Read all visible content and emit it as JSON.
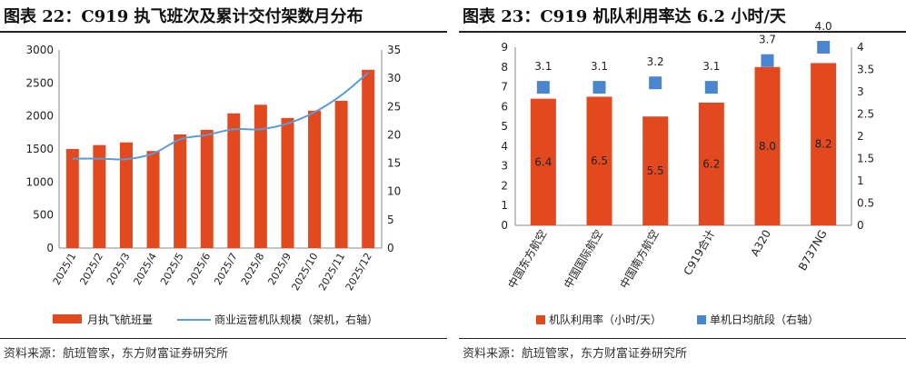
{
  "chart_data": [
    {
      "type": "bar",
      "title": "图表 22：C919 执飞班次及累计交付架数月分布",
      "source": "资料来源：航班管家，东方财富证券研究所",
      "categories": [
        "2025/1",
        "2025/2",
        "2025/3",
        "2025/4",
        "2025/5",
        "2025/6",
        "2025/7",
        "2025/8",
        "2025/9",
        "2025/10",
        "2025/11",
        "2025/12"
      ],
      "series": [
        {
          "name": "月执飞航班量",
          "type": "bar",
          "axis": "left",
          "color": "#E2491F",
          "values": [
            1500,
            1560,
            1600,
            1470,
            1720,
            1790,
            2040,
            2170,
            1970,
            2080,
            2230,
            2700
          ]
        },
        {
          "name": "商业运营机队规模（架机，右轴）",
          "type": "line",
          "axis": "right",
          "color": "#5B9BD5",
          "values": [
            15.8,
            15.8,
            15.7,
            16.7,
            19.2,
            20,
            21,
            21,
            22,
            24,
            27,
            31
          ]
        }
      ],
      "ylim": [
        0,
        3000
      ],
      "yticks": [
        0,
        500,
        1000,
        1500,
        2000,
        2500,
        3000
      ],
      "y2lim": [
        0,
        35
      ],
      "y2ticks": [
        0,
        5,
        10,
        15,
        20,
        25,
        30,
        35
      ],
      "grid": false,
      "legend": "bottom"
    },
    {
      "type": "bar",
      "title": "图表 23：C919 机队利用率达 6.2 小时/天",
      "source": "资料来源：航班管家，东方财富证券研究所",
      "categories": [
        "中国东方航空",
        "中国国际航空",
        "中国南方航空",
        "C919合计",
        "A320",
        "B737NG"
      ],
      "series": [
        {
          "name": "机队利用率（小时/天）",
          "type": "bar",
          "axis": "left",
          "color": "#E2491F",
          "values": [
            6.4,
            6.5,
            5.5,
            6.2,
            8.0,
            8.2
          ],
          "labels": [
            "6.4",
            "6.5",
            "5.5",
            "6.2",
            "8.0",
            "8.2"
          ]
        },
        {
          "name": "单机日均航段（右轴）",
          "type": "scatter",
          "axis": "right",
          "color": "#4A86D0",
          "values": [
            3.1,
            3.1,
            3.2,
            3.1,
            3.7,
            4.0
          ],
          "labels": [
            "3.1",
            "3.1",
            "3.2",
            "3.1",
            "3.7",
            "4.0"
          ]
        }
      ],
      "ylim": [
        0,
        9
      ],
      "yticks": [
        0,
        1,
        2,
        3,
        4,
        5,
        6,
        7,
        8,
        9
      ],
      "y2lim": [
        0,
        4
      ],
      "y2ticks": [
        "0",
        "0.5",
        "1",
        "1.5",
        "2",
        "2.5",
        "3",
        "3.5",
        "4"
      ],
      "grid": false,
      "legend": "bottom"
    }
  ]
}
